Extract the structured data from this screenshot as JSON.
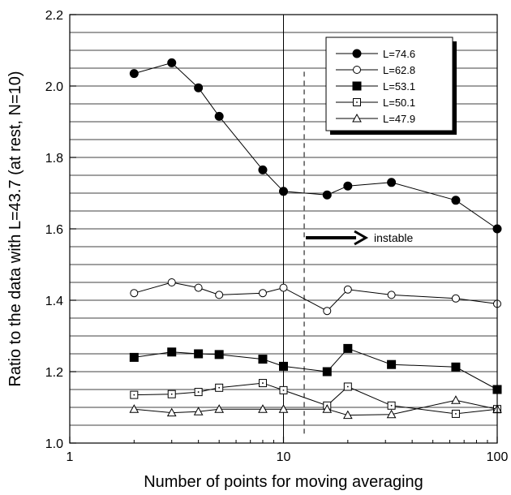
{
  "chart_data": {
    "type": "line",
    "title": "",
    "xlabel": "Number of points for moving averaging",
    "ylabel": "Ratio to the data with L=43.7 (at rest, N=10)",
    "xscale": "log",
    "xlim": [
      1,
      100
    ],
    "ylim": [
      1.0,
      2.2
    ],
    "x_ticks": [
      1,
      10,
      100
    ],
    "x_tick_labels": [
      "1",
      "10",
      "100"
    ],
    "y_ticks": [
      1.0,
      1.2,
      1.4,
      1.6,
      1.8,
      2.0,
      2.2
    ],
    "y_tick_labels": [
      "1.0",
      "1.2",
      "1.4",
      "1.6",
      "1.8",
      "2.0",
      "2.2"
    ],
    "grid": "horizontal lines every 0.05",
    "legend_position": "top-right",
    "series": [
      {
        "name": "L=74.6",
        "marker": "filled-circle",
        "x": [
          2,
          3,
          4,
          5,
          8,
          10,
          16,
          20,
          32,
          64,
          100
        ],
        "y": [
          2.035,
          2.065,
          1.995,
          1.915,
          1.765,
          1.705,
          1.695,
          1.72,
          1.73,
          1.68,
          1.6
        ]
      },
      {
        "name": "L=62.8",
        "marker": "open-circle",
        "x": [
          2,
          3,
          4,
          5,
          8,
          10,
          16,
          20,
          32,
          64,
          100
        ],
        "y": [
          1.42,
          1.45,
          1.435,
          1.415,
          1.42,
          1.435,
          1.37,
          1.43,
          1.415,
          1.405,
          1.39
        ]
      },
      {
        "name": "L=53.1",
        "marker": "filled-square",
        "x": [
          2,
          3,
          4,
          5,
          8,
          10,
          16,
          20,
          32,
          64,
          100
        ],
        "y": [
          1.24,
          1.255,
          1.25,
          1.248,
          1.235,
          1.215,
          1.2,
          1.265,
          1.22,
          1.213,
          1.15
        ]
      },
      {
        "name": "L=50.1",
        "marker": "open-square",
        "x": [
          2,
          3,
          4,
          5,
          8,
          10,
          16,
          20,
          32,
          64,
          100
        ],
        "y": [
          1.135,
          1.137,
          1.143,
          1.155,
          1.168,
          1.148,
          1.105,
          1.158,
          1.105,
          1.082,
          1.095
        ]
      },
      {
        "name": "L=47.9",
        "marker": "open-triangle",
        "x": [
          2,
          3,
          4,
          5,
          8,
          10,
          16,
          20,
          32,
          64,
          100
        ],
        "y": [
          1.095,
          1.085,
          1.088,
          1.095,
          1.095,
          1.095,
          1.095,
          1.078,
          1.08,
          1.12,
          1.095
        ]
      }
    ],
    "reference_lines": [
      {
        "type": "vertical",
        "style": "solid",
        "x": 10
      },
      {
        "type": "vertical",
        "style": "dashed",
        "x": 12.5,
        "y_range": [
          1.02,
          2.04
        ]
      }
    ],
    "annotations": [
      {
        "text": "instable",
        "arrow": "right",
        "x": 12.5,
        "y": 1.575
      }
    ]
  }
}
